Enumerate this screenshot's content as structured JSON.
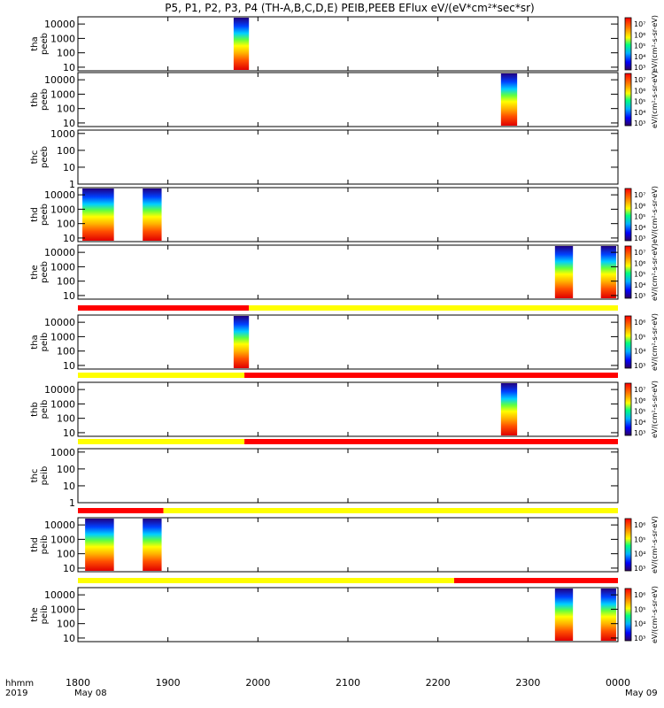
{
  "title": "P5, P1, P2, P3, P4 (TH-A,B,C,D,E) PEIB,PEEB EFlux eV/(eV*cm²*sec*sr)",
  "colors": {
    "bar_red": "#ff0000",
    "bar_yellow": "#ffff00",
    "axis": "#000000"
  },
  "chart_data": {
    "type": "heatmap",
    "x_axis": {
      "range": [
        1800,
        2400
      ],
      "ticks": [
        "1800",
        "1900",
        "2000",
        "2100",
        "2200",
        "2300",
        "0000"
      ],
      "tick_values": [
        1800,
        1900,
        2000,
        2100,
        2200,
        2300,
        2400
      ],
      "corner_label_1": "hhmm",
      "corner_label_2": "2019",
      "date_start": "May 08",
      "date_end": "May 09"
    },
    "panels": [
      {
        "id": "tha-peeb",
        "probe": "tha",
        "product": "peeb",
        "ytick_values": [
          10,
          100,
          1000,
          10000
        ],
        "ytick_labels": [
          "10",
          "100",
          "1000",
          "10000"
        ],
        "ylog_range": [
          0.75,
          4.5
        ],
        "blocks": [
          [
            1973,
            1990
          ]
        ],
        "colorbar": "big",
        "cb_ticks": [
          "10⁷",
          "10⁶",
          "10⁵",
          "10⁴",
          "10³"
        ],
        "cb_label": "eV/(cm²-s-sr-eV)"
      },
      {
        "id": "thb-peeb",
        "probe": "thb",
        "product": "peeb",
        "ytick_values": [
          10,
          100,
          1000,
          10000
        ],
        "ytick_labels": [
          "10",
          "100",
          "1000",
          "10000"
        ],
        "ylog_range": [
          0.75,
          4.5
        ],
        "blocks": [
          [
            2270,
            2288
          ]
        ],
        "colorbar": "big",
        "cb_ticks": [
          "10⁷",
          "10⁶",
          "10⁵",
          "10⁴",
          "10³"
        ],
        "cb_label": "eV/(cm²-s-sr-eV)"
      },
      {
        "id": "thc-peeb",
        "probe": "thc",
        "product": "peeb",
        "ytick_values": [
          1,
          10,
          100,
          1000
        ],
        "ytick_labels": [
          "1",
          "10",
          "100",
          "1000"
        ],
        "ylog_range": [
          0,
          3.2
        ],
        "blocks": [],
        "colorbar": "none"
      },
      {
        "id": "thd-peeb",
        "probe": "thd",
        "product": "peeb",
        "ytick_values": [
          10,
          100,
          1000,
          10000
        ],
        "ytick_labels": [
          "10",
          "100",
          "1000",
          "10000"
        ],
        "ylog_range": [
          0.75,
          4.5
        ],
        "blocks": [
          [
            1805,
            1840
          ],
          [
            1872,
            1893
          ]
        ],
        "colorbar": "big",
        "cb_ticks": [
          "10⁷",
          "10⁶",
          "10⁵",
          "10⁴",
          "10³"
        ],
        "cb_label": "eV/(cm²-s-sr-eV)"
      },
      {
        "id": "the-peeb",
        "probe": "the",
        "product": "peeb",
        "ytick_values": [
          10,
          100,
          1000,
          10000
        ],
        "ytick_labels": [
          "10",
          "100",
          "1000",
          "10000"
        ],
        "ylog_range": [
          0.75,
          4.5
        ],
        "blocks": [
          [
            2330,
            2350
          ],
          [
            2381,
            2398
          ]
        ],
        "colorbar": "big",
        "cb_ticks": [
          "10⁷",
          "10⁶",
          "10⁵",
          "10⁴",
          "10³"
        ],
        "cb_label": "eV/(cm²-s-sr-eV)"
      },
      {
        "id": "tha-peib",
        "probe": "tha",
        "product": "peib",
        "ytick_values": [
          10,
          100,
          1000,
          10000
        ],
        "ytick_labels": [
          "10",
          "100",
          "1000",
          "10000"
        ],
        "ylog_range": [
          0.75,
          4.5
        ],
        "blocks": [
          [
            1973,
            1990
          ]
        ],
        "colorbar": "big",
        "cb_ticks": [
          "10⁶",
          "10⁵",
          "10⁴",
          "10³"
        ],
        "cb_label": "eV/(cm²-s-sr-eV)",
        "mode_bar": [
          [
            "#ff0000",
            1800,
            1990
          ],
          [
            "#ffff00",
            1990,
            2400
          ]
        ]
      },
      {
        "id": "thb-peib",
        "probe": "thb",
        "product": "peib",
        "ytick_values": [
          10,
          100,
          1000,
          10000
        ],
        "ytick_labels": [
          "10",
          "100",
          "1000",
          "10000"
        ],
        "ylog_range": [
          0.75,
          4.5
        ],
        "blocks": [
          [
            2270,
            2288
          ]
        ],
        "colorbar": "big",
        "cb_ticks": [
          "10⁷",
          "10⁶",
          "10⁵",
          "10⁴",
          "10³"
        ],
        "cb_label": "eV/(cm²-s-sr-eV)",
        "mode_bar": [
          [
            "#ffff00",
            1800,
            1985
          ],
          [
            "#ff0000",
            1985,
            2400
          ]
        ]
      },
      {
        "id": "thc-peib",
        "probe": "thc",
        "product": "peib",
        "ytick_values": [
          1,
          10,
          100,
          1000
        ],
        "ytick_labels": [
          "1",
          "10",
          "100",
          "1000"
        ],
        "ylog_range": [
          0,
          3.2
        ],
        "blocks": [],
        "colorbar": "none",
        "mode_bar": [
          [
            "#ffff00",
            1800,
            1985
          ],
          [
            "#ff0000",
            1985,
            2400
          ]
        ]
      },
      {
        "id": "thd-peib",
        "probe": "thd",
        "product": "peib",
        "ytick_values": [
          10,
          100,
          1000,
          10000
        ],
        "ytick_labels": [
          "10",
          "100",
          "1000",
          "10000"
        ],
        "ylog_range": [
          0.75,
          4.5
        ],
        "blocks": [
          [
            1808,
            1840
          ],
          [
            1872,
            1893
          ]
        ],
        "colorbar": "big",
        "cb_ticks": [
          "10⁶",
          "10⁵",
          "10⁴",
          "10³"
        ],
        "cb_label": "eV/(cm²-s-sr-eV)",
        "mode_bar": [
          [
            "#ff0000",
            1800,
            1895
          ],
          [
            "#ffff00",
            1895,
            2400
          ]
        ]
      },
      {
        "id": "the-peib",
        "probe": "the",
        "product": "peib",
        "ytick_values": [
          10,
          100,
          1000,
          10000
        ],
        "ytick_labels": [
          "10",
          "100",
          "1000",
          "10000"
        ],
        "ylog_range": [
          0.75,
          4.5
        ],
        "blocks": [
          [
            2330,
            2350
          ],
          [
            2381,
            2398
          ]
        ],
        "colorbar": "big",
        "cb_ticks": [
          "10⁶",
          "10⁵",
          "10⁴",
          "10³"
        ],
        "cb_label": "eV/(cm²-s-sr-eV)",
        "mode_bar": [
          [
            "#ffff00",
            1800,
            2218
          ],
          [
            "#ff0000",
            2218,
            2400
          ]
        ]
      }
    ]
  }
}
